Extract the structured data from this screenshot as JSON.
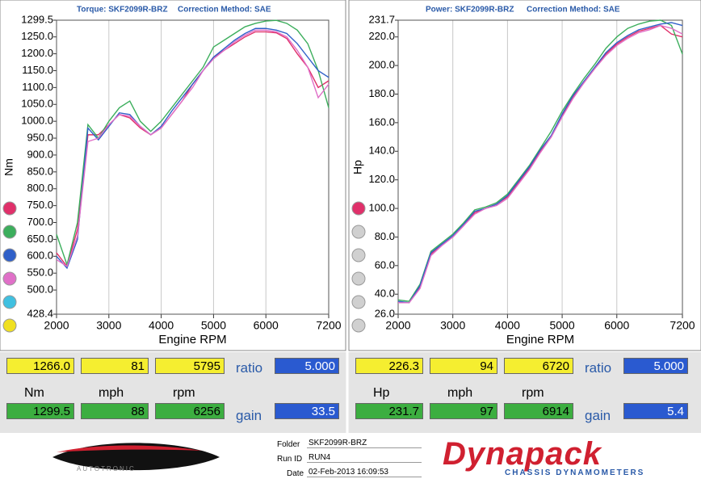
{
  "chart_data": [
    {
      "type": "line",
      "title": "Torque: SKF2099R-BRZ",
      "subtitle": "Correction Method: SAE",
      "x_label": "Engine RPM",
      "y_label": "Nm",
      "x": [
        2000,
        2200,
        2400,
        2600,
        2800,
        3000,
        3200,
        3400,
        3600,
        3800,
        4000,
        4200,
        4400,
        4600,
        4800,
        5000,
        5200,
        5400,
        5600,
        5800,
        6000,
        6200,
        6400,
        6600,
        6800,
        7000,
        7200
      ],
      "series": [
        {
          "color": "#e0306a",
          "values": [
            610,
            570,
            680,
            960,
            960,
            990,
            1020,
            1010,
            980,
            960,
            980,
            1020,
            1060,
            1110,
            1150,
            1190,
            1210,
            1230,
            1250,
            1265,
            1265,
            1262,
            1245,
            1200,
            1160,
            1100,
            1120
          ]
        },
        {
          "color": "#3cae5c",
          "values": [
            665,
            575,
            700,
            990,
            950,
            1000,
            1040,
            1060,
            1000,
            970,
            1000,
            1040,
            1080,
            1120,
            1160,
            1220,
            1240,
            1260,
            1280,
            1290,
            1297,
            1299,
            1290,
            1270,
            1230,
            1150,
            1040
          ]
        },
        {
          "color": "#3060c8",
          "values": [
            600,
            565,
            650,
            980,
            945,
            985,
            1025,
            1020,
            985,
            960,
            985,
            1030,
            1070,
            1110,
            1150,
            1190,
            1215,
            1240,
            1260,
            1275,
            1275,
            1270,
            1260,
            1230,
            1190,
            1150,
            1130
          ]
        },
        {
          "color": "#e070c8",
          "values": [
            590,
            570,
            660,
            940,
            950,
            990,
            1020,
            1015,
            985,
            960,
            980,
            1020,
            1060,
            1100,
            1150,
            1185,
            1210,
            1235,
            1255,
            1270,
            1270,
            1265,
            1250,
            1210,
            1160,
            1070,
            1110
          ]
        }
      ],
      "xlim": [
        2000,
        7200
      ],
      "xticks": [
        2000,
        3000,
        4000,
        5000,
        6000,
        7200
      ],
      "ylim": [
        428.4,
        1299.5
      ],
      "yticks": [
        428.4,
        {
          "value": 500,
          "label": "500.0"
        },
        {
          "value": 550,
          "label": "550.0"
        },
        {
          "value": 600,
          "label": "600.0"
        },
        {
          "value": 650,
          "label": "650.0"
        },
        {
          "value": 700,
          "label": "700.0"
        },
        {
          "value": 750,
          "label": "750.0"
        },
        {
          "value": 800,
          "label": "800.0"
        },
        {
          "value": 850,
          "label": "850.0"
        },
        {
          "value": 900,
          "label": "900.0"
        },
        {
          "value": 950,
          "label": "950.0"
        },
        {
          "value": 1000,
          "label": "1000.0"
        },
        {
          "value": 1050,
          "label": "1050.0"
        },
        {
          "value": 1100,
          "label": "1100.0"
        },
        {
          "value": 1150,
          "label": "1150.0"
        },
        {
          "value": 1200,
          "label": "1200.0"
        },
        {
          "value": 1250,
          "label": "1250.0"
        },
        1299.5
      ],
      "grid": true
    },
    {
      "type": "line",
      "title": "Power: SKF2099R-BRZ",
      "subtitle": "Correction Method: SAE",
      "x_label": "Engine RPM",
      "y_label": "Hp",
      "x": [
        2000,
        2200,
        2400,
        2600,
        2800,
        3000,
        3200,
        3400,
        3600,
        3800,
        4000,
        4200,
        4400,
        4600,
        4800,
        5000,
        5200,
        5400,
        5600,
        5800,
        6000,
        6200,
        6400,
        6600,
        6800,
        7000,
        7200
      ],
      "series": [
        {
          "color": "#e0306a",
          "values": [
            34,
            34,
            45,
            68,
            75,
            80,
            88,
            97,
            100,
            103,
            108,
            118,
            128,
            140,
            150,
            165,
            178,
            188,
            198,
            208,
            215,
            220,
            224,
            226,
            228,
            222,
            220
          ]
        },
        {
          "color": "#3cae5c",
          "values": [
            36,
            35,
            47,
            70,
            76,
            82,
            90,
            99,
            101,
            104,
            110,
            120,
            130,
            142,
            154,
            168,
            180,
            191,
            201,
            212,
            220,
            226,
            229,
            231,
            231.7,
            228,
            208
          ]
        },
        {
          "color": "#3060c8",
          "values": [
            35,
            34,
            46,
            69,
            75,
            81,
            89,
            98,
            100,
            103,
            109,
            119,
            129,
            141,
            151,
            166,
            179,
            189,
            199,
            209,
            216,
            221,
            225,
            227,
            229,
            230,
            228
          ]
        },
        {
          "color": "#e070c8",
          "values": [
            34,
            34,
            44,
            67,
            74,
            80,
            88,
            96,
            100,
            102,
            107,
            117,
            127,
            139,
            150,
            164,
            177,
            188,
            198,
            207,
            214,
            219,
            223,
            225,
            228,
            226,
            222
          ]
        }
      ],
      "xlim": [
        2000,
        7200
      ],
      "xticks": [
        2000,
        3000,
        4000,
        5000,
        6000,
        7200
      ],
      "ylim": [
        26,
        231.7
      ],
      "yticks": [
        {
          "value": 26,
          "label": "26.0"
        },
        {
          "value": 40,
          "label": "40.0"
        },
        {
          "value": 60,
          "label": "60.0"
        },
        {
          "value": 80,
          "label": "80.0"
        },
        {
          "value": 100,
          "label": "100.0"
        },
        {
          "value": 120,
          "label": "120.0"
        },
        {
          "value": 140,
          "label": "140.0"
        },
        {
          "value": 160,
          "label": "160.0"
        },
        {
          "value": 180,
          "label": "180.0"
        },
        {
          "value": 200,
          "label": "200.0"
        },
        {
          "value": 220,
          "label": "220.0"
        },
        231.7
      ],
      "grid": true
    }
  ],
  "readouts": [
    {
      "row1": [
        "1266.0",
        "81",
        "5795"
      ],
      "ratio_label": "ratio",
      "ratio": "5.000",
      "units": [
        "Nm",
        "mph",
        "rpm"
      ],
      "row2": [
        "1299.5",
        "88",
        "6256"
      ],
      "gain_label": "gain",
      "gain": "33.5"
    },
    {
      "row1": [
        "226.3",
        "94",
        "6720"
      ],
      "ratio_label": "ratio",
      "ratio": "5.000",
      "units": [
        "Hp",
        "mph",
        "rpm"
      ],
      "row2": [
        "231.7",
        "97",
        "6914"
      ],
      "gain_label": "gain",
      "gain": "5.4"
    }
  ],
  "footer": {
    "folder_label": "Folder",
    "folder": "SKF2099R-BRZ",
    "runid_label": "Run ID",
    "runid": "RUN4",
    "date_label": "Date",
    "date": "02-Feb-2013 16:09:53",
    "autotronic": "AUTOTRONIC",
    "brand": "Dynapack",
    "brand_sub": "CHASSIS DYNAMOMETERS"
  }
}
